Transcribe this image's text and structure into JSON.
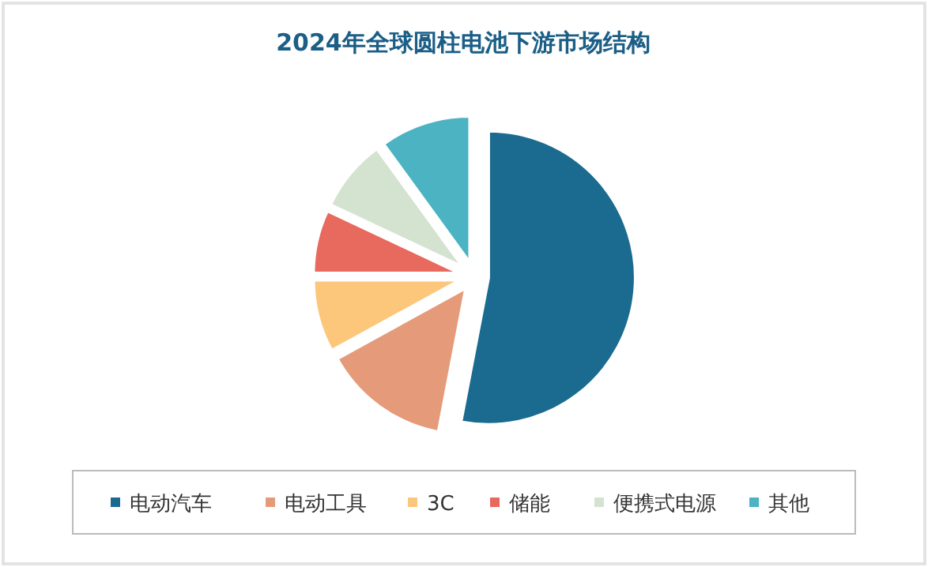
{
  "chart_data": {
    "type": "pie",
    "title": "2024年全球圆柱电池下游市场结构",
    "legend": "bottom",
    "categories": [
      "电动汽车",
      "电动工具",
      "3C",
      "储能",
      "便携式电源",
      "其他"
    ],
    "values": [
      53,
      14,
      8,
      7,
      8,
      10
    ],
    "colors": [
      "#1a6b8f",
      "#e59b7a",
      "#fcc67b",
      "#e8695d",
      "#d4e3d0",
      "#4bb3c2"
    ]
  }
}
